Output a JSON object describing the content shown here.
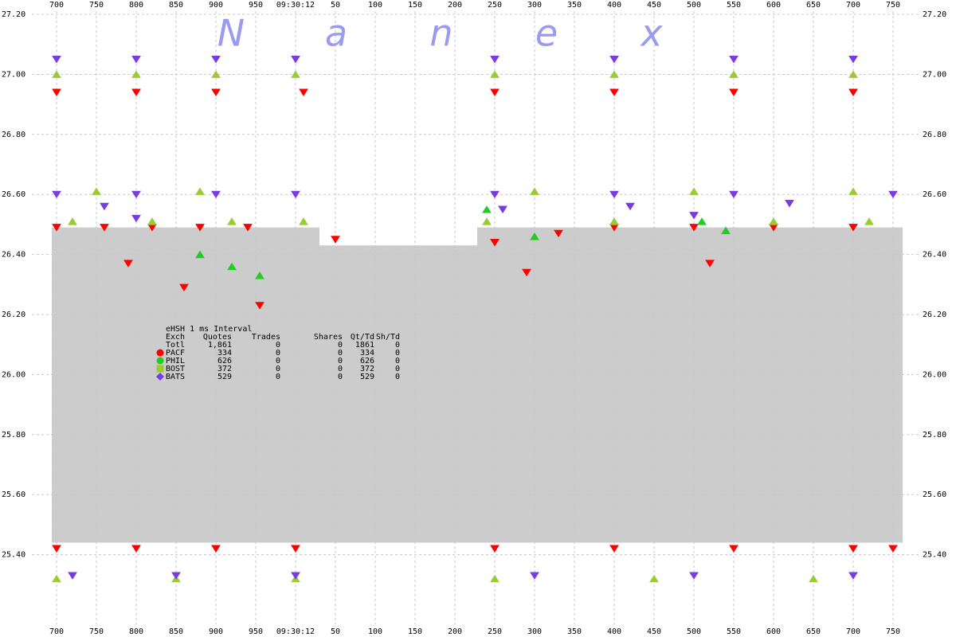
{
  "chart_data": {
    "type": "quote-scatter",
    "watermark": [
      "N",
      "a",
      "n",
      "e",
      "x"
    ],
    "xlim": [
      694,
      1762
    ],
    "xticks": [
      700,
      750,
      800,
      850,
      900,
      950,
      {
        "value": 1000,
        "label": "09:30:12"
      },
      {
        "value": 1050,
        "label": "50"
      },
      {
        "value": 1100,
        "label": "100"
      },
      {
        "value": 1150,
        "label": "150"
      },
      {
        "value": 1200,
        "label": "200"
      },
      {
        "value": 1250,
        "label": "250"
      },
      {
        "value": 1300,
        "label": "300"
      },
      {
        "value": 1350,
        "label": "350"
      },
      {
        "value": 1400,
        "label": "400"
      },
      {
        "value": 1450,
        "label": "450"
      },
      {
        "value": 1500,
        "label": "500"
      },
      {
        "value": 1550,
        "label": "550"
      },
      {
        "value": 1600,
        "label": "600"
      },
      {
        "value": 1650,
        "label": "650"
      },
      {
        "value": 1700,
        "label": "700"
      },
      {
        "value": 1750,
        "label": "750"
      }
    ],
    "ylim": [
      25.2,
      27.2
    ],
    "yticks": [
      {
        "value": 27.2,
        "label": "27.20"
      },
      {
        "value": 27.0,
        "label": "27.00"
      },
      {
        "value": 26.8,
        "label": "26.80"
      },
      {
        "value": 26.6,
        "label": "26.60"
      },
      {
        "value": 26.4,
        "label": "26.40"
      },
      {
        "value": 26.2,
        "label": "26.20"
      },
      {
        "value": 26.0,
        "label": "26.00"
      },
      {
        "value": 25.8,
        "label": "25.80"
      },
      {
        "value": 25.6,
        "label": "25.60"
      },
      {
        "value": 25.4,
        "label": "25.40"
      }
    ],
    "grid": true,
    "spread": {
      "color": "#cccccc",
      "x": [
        694,
        1030,
        1030,
        1228,
        1228,
        1762
      ],
      "high": [
        26.49,
        26.49,
        26.43,
        26.43,
        26.49,
        26.49
      ],
      "low": [
        25.44,
        25.44,
        25.44,
        25.44,
        25.44,
        25.44
      ]
    },
    "stats": {
      "title": "eHSH 1 ms Interval",
      "columns": [
        "Exch",
        "Quotes",
        "Trades",
        "Shares",
        "Qt/Td",
        "Sh/Td"
      ],
      "total_label": "Totl",
      "total": [
        "1,861",
        "0",
        "0",
        "1861",
        "0"
      ]
    },
    "series": [
      {
        "name": "PACF",
        "color": "#ff0000",
        "marker": "circle",
        "point_shape": "down",
        "stats": [
          "334",
          "0",
          "0",
          "334",
          "0"
        ],
        "x": [
          700,
          800,
          900,
          1010,
          1250,
          1400,
          1550,
          1700,
          700,
          760,
          820,
          880,
          940,
          1050,
          1250,
          1330,
          1400,
          1500,
          1600,
          1700,
          790,
          860,
          955,
          1290,
          1520,
          700,
          800,
          900,
          1000,
          1250,
          1400,
          1550,
          1700,
          1750
        ],
        "values": [
          26.94,
          26.94,
          26.94,
          26.94,
          26.94,
          26.94,
          26.94,
          26.94,
          26.49,
          26.49,
          26.49,
          26.49,
          26.49,
          26.45,
          26.44,
          26.47,
          26.49,
          26.49,
          26.49,
          26.49,
          26.37,
          26.29,
          26.23,
          26.34,
          26.37,
          25.42,
          25.42,
          25.42,
          25.42,
          25.42,
          25.42,
          25.42,
          25.42,
          25.42
        ]
      },
      {
        "name": "PHIL",
        "color": "#22cc22",
        "marker": "circle",
        "point_shape": "up",
        "stats": [
          "626",
          "0",
          "0",
          "626",
          "0"
        ],
        "x": [
          880,
          920,
          955,
          1240,
          1300,
          1510,
          1540
        ],
        "values": [
          26.4,
          26.36,
          26.33,
          26.55,
          26.46,
          26.51,
          26.48
        ]
      },
      {
        "name": "BOST",
        "color": "#99cc33",
        "marker": "square",
        "point_shape": "up",
        "stats": [
          "372",
          "0",
          "0",
          "372",
          "0"
        ],
        "x": [
          700,
          800,
          900,
          1000,
          1250,
          1400,
          1550,
          1700,
          720,
          820,
          920,
          1010,
          1240,
          1400,
          1600,
          1720,
          750,
          880,
          1300,
          1500,
          1700,
          700,
          850,
          1000,
          1250,
          1450,
          1650
        ],
        "values": [
          27.0,
          27.0,
          27.0,
          27.0,
          27.0,
          27.0,
          27.0,
          27.0,
          26.51,
          26.51,
          26.51,
          26.51,
          26.51,
          26.51,
          26.51,
          26.51,
          26.61,
          26.61,
          26.61,
          26.61,
          26.61,
          25.32,
          25.32,
          25.32,
          25.32,
          25.32,
          25.32
        ]
      },
      {
        "name": "BATS",
        "color": "#7a3be0",
        "marker": "diamond",
        "point_shape": "down",
        "stats": [
          "529",
          "0",
          "0",
          "529",
          "0"
        ],
        "x": [
          700,
          800,
          900,
          1000,
          1250,
          1400,
          1550,
          1700,
          700,
          800,
          900,
          1000,
          1250,
          1400,
          1550,
          1750,
          760,
          800,
          1260,
          1420,
          1500,
          1620,
          720,
          850,
          1000,
          1300,
          1500,
          1700
        ],
        "values": [
          27.05,
          27.05,
          27.05,
          27.05,
          27.05,
          27.05,
          27.05,
          27.05,
          26.6,
          26.6,
          26.6,
          26.6,
          26.6,
          26.6,
          26.6,
          26.6,
          26.56,
          26.52,
          26.55,
          26.56,
          26.53,
          26.57,
          25.33,
          25.33,
          25.33,
          25.33,
          25.33,
          25.33
        ]
      }
    ]
  }
}
